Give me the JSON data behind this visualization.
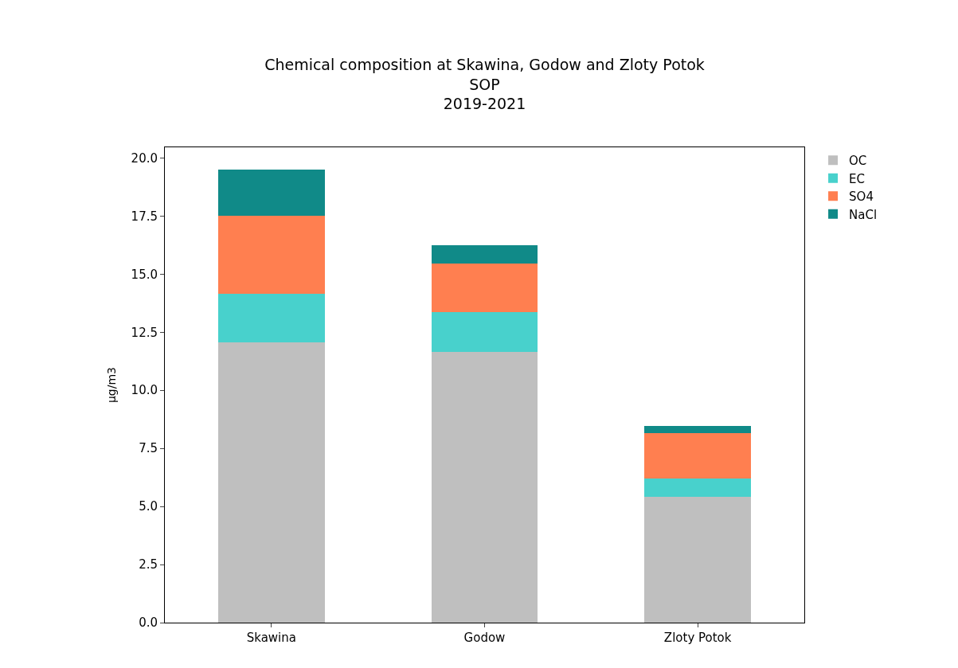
{
  "chart_data": {
    "type": "bar",
    "title": "Chemical composition at Skawina, Godow and Zloty Potok\nSOP\n2019-2021",
    "ylabel": "µg/m3",
    "categories": [
      "Skawina",
      "Godow",
      "Zloty Potok"
    ],
    "stacked": true,
    "series": [
      {
        "name": "OC",
        "color": "#bfbfbf",
        "values": [
          12.05,
          11.65,
          5.4
        ]
      },
      {
        "name": "EC",
        "color": "#48d1cc",
        "values": [
          2.1,
          1.7,
          0.8
        ]
      },
      {
        "name": "SO4",
        "color": "#ff7f50",
        "values": [
          3.35,
          2.1,
          1.95
        ]
      },
      {
        "name": "NaCl",
        "color": "#108a88",
        "values": [
          2.0,
          0.8,
          0.3
        ]
      }
    ],
    "ylim": [
      0,
      20.46
    ],
    "yticks": [
      {
        "value": 0,
        "label": "0.0"
      },
      {
        "value": 2.5,
        "label": "2.5"
      },
      {
        "value": 5,
        "label": "5.0"
      },
      {
        "value": 7.5,
        "label": "7.5"
      },
      {
        "value": 10,
        "label": "10.0"
      },
      {
        "value": 12.5,
        "label": "12.5"
      },
      {
        "value": 15,
        "label": "15.0"
      },
      {
        "value": 17.5,
        "label": "17.5"
      },
      {
        "value": 20,
        "label": "20.0"
      }
    ],
    "legend": "top right"
  }
}
